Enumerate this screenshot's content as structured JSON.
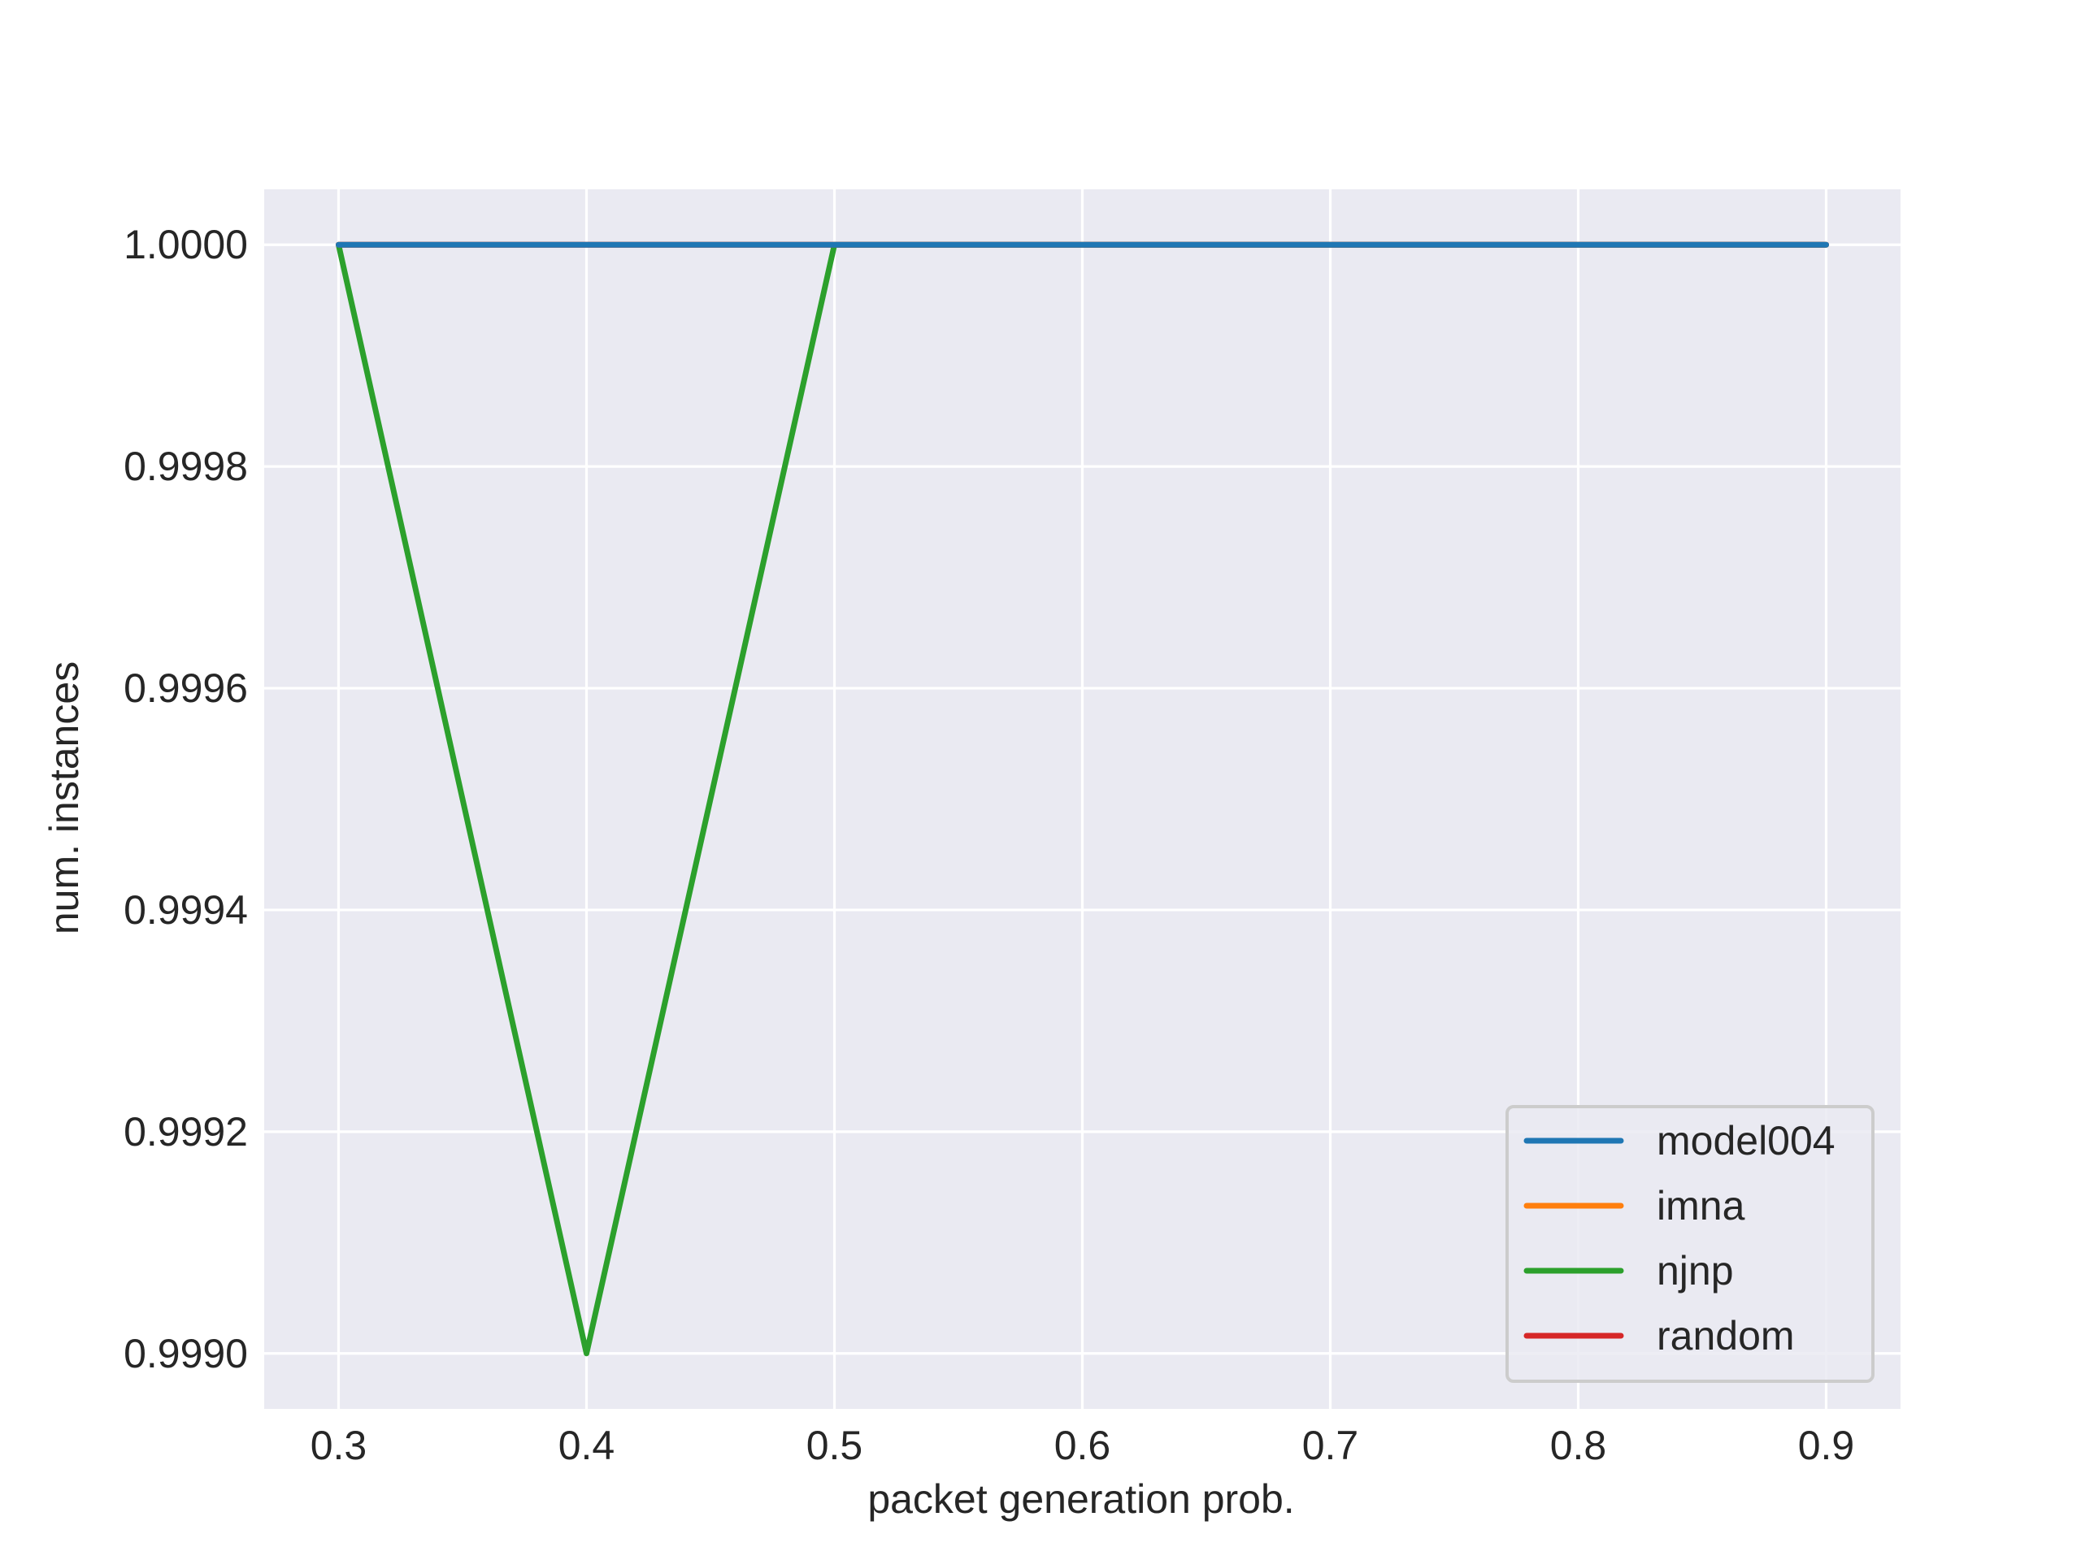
{
  "chart_data": {
    "type": "line",
    "title": "",
    "xlabel": "packet generation prob.",
    "ylabel": "num. instances",
    "xlim": [
      0.27,
      0.93
    ],
    "ylim": [
      0.99895,
      1.00005
    ],
    "x_ticks": [
      0.3,
      0.4,
      0.5,
      0.6,
      0.7,
      0.8,
      0.9
    ],
    "x_tick_labels": [
      "0.3",
      "0.4",
      "0.5",
      "0.6",
      "0.7",
      "0.8",
      "0.9"
    ],
    "y_ticks": [
      0.999,
      0.9992,
      0.9994,
      0.9996,
      0.9998,
      1.0
    ],
    "y_tick_labels": [
      "0.9990",
      "0.9992",
      "0.9994",
      "0.9996",
      "0.9998",
      "1.0000"
    ],
    "grid": true,
    "legend_position": "lower-right",
    "x": [
      0.3,
      0.4,
      0.5,
      0.6,
      0.7,
      0.8,
      0.9
    ],
    "series": [
      {
        "name": "model004",
        "color": "#1f77b4",
        "values": [
          1.0,
          1.0,
          1.0,
          1.0,
          1.0,
          1.0,
          1.0
        ]
      },
      {
        "name": "imna",
        "color": "#ff7f0e",
        "values": [
          1.0,
          1.0,
          1.0,
          1.0,
          1.0,
          1.0,
          1.0
        ]
      },
      {
        "name": "njnp",
        "color": "#2ca02c",
        "values": [
          1.0,
          0.999,
          1.0,
          1.0,
          1.0,
          1.0,
          1.0
        ]
      },
      {
        "name": "random",
        "color": "#d62728",
        "values": [
          1.0,
          1.0,
          1.0,
          1.0,
          1.0,
          1.0,
          1.0
        ]
      }
    ],
    "draw_order": [
      "imna",
      "njnp",
      "random",
      "model004"
    ],
    "plot_background": "#eaeaf2",
    "grid_color": "#ffffff"
  }
}
